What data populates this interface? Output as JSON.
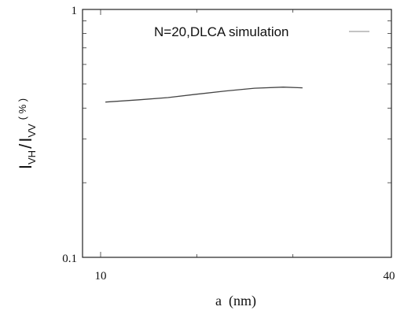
{
  "chart_data": {
    "type": "line",
    "xlabel": "a  (nm)",
    "ylabel": "I_VH / I_VV (%)",
    "ylabel_parts": {
      "I1": "I",
      "sub1": "VH",
      "slash": "/",
      "I2": "I",
      "sub2": "VV",
      "unit": "( % )"
    },
    "x_ticks": [
      "10",
      "40"
    ],
    "y_ticks": [
      "0.1",
      "1"
    ],
    "xlim": [
      8,
      40
    ],
    "ylim": [
      0.1,
      1
    ],
    "y_scale": "log",
    "grid": false,
    "legend_position": "top-right",
    "series": [
      {
        "name": "N=20,DLCA simulation",
        "color": "#444444",
        "x": [
          10.5,
          14,
          17,
          20,
          23,
          26,
          29,
          31
        ],
        "y": [
          0.423,
          0.432,
          0.441,
          0.455,
          0.469,
          0.481,
          0.486,
          0.483
        ]
      }
    ]
  }
}
